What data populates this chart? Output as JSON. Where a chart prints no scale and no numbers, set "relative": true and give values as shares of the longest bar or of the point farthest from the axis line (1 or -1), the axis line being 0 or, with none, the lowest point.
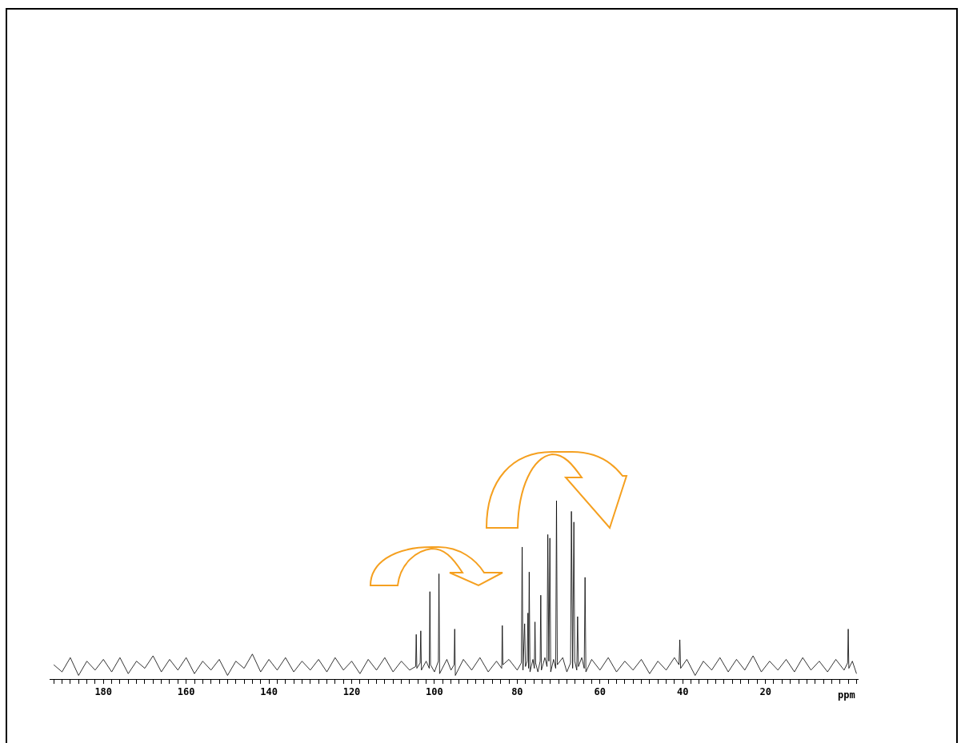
{
  "chart_data": {
    "type": "line",
    "relative": true,
    "xlabel": "ppm",
    "xlim": [
      193,
      -2.5
    ],
    "xticks": [
      {
        "value": 192,
        "label": null
      },
      {
        "value": 190,
        "label": null
      },
      {
        "value": 188,
        "label": null
      },
      {
        "value": 186,
        "label": null
      },
      {
        "value": 184,
        "label": null
      },
      {
        "value": 182,
        "label": null
      },
      180,
      {
        "value": 178,
        "label": null
      },
      {
        "value": 176,
        "label": null
      },
      {
        "value": 174,
        "label": null
      },
      {
        "value": 172,
        "label": null
      },
      {
        "value": 170,
        "label": null
      },
      {
        "value": 168,
        "label": null
      },
      {
        "value": 166,
        "label": null
      },
      {
        "value": 164,
        "label": null
      },
      {
        "value": 162,
        "label": null
      },
      160,
      {
        "value": 158,
        "label": null
      },
      {
        "value": 156,
        "label": null
      },
      {
        "value": 154,
        "label": null
      },
      {
        "value": 152,
        "label": null
      },
      {
        "value": 150,
        "label": null
      },
      {
        "value": 148,
        "label": null
      },
      {
        "value": 146,
        "label": null
      },
      {
        "value": 144,
        "label": null
      },
      {
        "value": 142,
        "label": null
      },
      140,
      {
        "value": 138,
        "label": null
      },
      {
        "value": 136,
        "label": null
      },
      {
        "value": 134,
        "label": null
      },
      {
        "value": 132,
        "label": null
      },
      {
        "value": 130,
        "label": null
      },
      {
        "value": 128,
        "label": null
      },
      {
        "value": 126,
        "label": null
      },
      {
        "value": 124,
        "label": null
      },
      {
        "value": 122,
        "label": null
      },
      120,
      {
        "value": 118,
        "label": null
      },
      {
        "value": 116,
        "label": null
      },
      {
        "value": 114,
        "label": null
      },
      {
        "value": 112,
        "label": null
      },
      {
        "value": 110,
        "label": null
      },
      {
        "value": 108,
        "label": null
      },
      {
        "value": 106,
        "label": null
      },
      {
        "value": 104,
        "label": null
      },
      {
        "value": 102,
        "label": null
      },
      100,
      {
        "value": 98,
        "label": null
      },
      {
        "value": 96,
        "label": null
      },
      {
        "value": 94,
        "label": null
      },
      {
        "value": 92,
        "label": null
      },
      {
        "value": 90,
        "label": null
      },
      {
        "value": 88,
        "label": null
      },
      {
        "value": 86,
        "label": null
      },
      {
        "value": 84,
        "label": null
      },
      {
        "value": 82,
        "label": null
      },
      80,
      {
        "value": 78,
        "label": null
      },
      {
        "value": 76,
        "label": null
      },
      {
        "value": 74,
        "label": null
      },
      {
        "value": 72,
        "label": null
      },
      {
        "value": 70,
        "label": null
      },
      {
        "value": 68,
        "label": null
      },
      {
        "value": 66,
        "label": null
      },
      {
        "value": 64,
        "label": null
      },
      {
        "value": 62,
        "label": null
      },
      60,
      {
        "value": 58,
        "label": null
      },
      {
        "value": 56,
        "label": null
      },
      {
        "value": 54,
        "label": null
      },
      {
        "value": 52,
        "label": null
      },
      {
        "value": 50,
        "label": null
      },
      {
        "value": 48,
        "label": null
      },
      {
        "value": 46,
        "label": null
      },
      {
        "value": 44,
        "label": null
      },
      {
        "value": 42,
        "label": null
      },
      40,
      {
        "value": 38,
        "label": null
      },
      {
        "value": 36,
        "label": null
      },
      {
        "value": 34,
        "label": null
      },
      {
        "value": 32,
        "label": null
      },
      {
        "value": 30,
        "label": null
      },
      {
        "value": 28,
        "label": null
      },
      {
        "value": 26,
        "label": null
      },
      {
        "value": 24,
        "label": null
      },
      {
        "value": 22,
        "label": null
      },
      20,
      {
        "value": 18,
        "label": null
      },
      {
        "value": 16,
        "label": null
      },
      {
        "value": 14,
        "label": null
      },
      {
        "value": 12,
        "label": null
      },
      {
        "value": 10,
        "label": null
      },
      {
        "value": 8,
        "label": null
      },
      {
        "value": 6,
        "label": null
      },
      {
        "value": 4,
        "label": null
      },
      {
        "value": 2,
        "label": null
      },
      {
        "value": 0,
        "label": null
      },
      {
        "value": -2,
        "label": null
      }
    ],
    "grid": false,
    "tick_labels": "x",
    "marker": "none",
    "line_style": "solid",
    "series": [
      {
        "color": "#000000",
        "x": [
          192,
          190,
          188,
          186,
          184,
          182,
          180,
          178,
          176,
          174,
          172,
          170,
          168,
          166,
          164,
          162,
          160,
          158,
          156,
          154,
          152,
          150,
          148,
          146,
          144,
          142,
          140,
          138,
          136,
          134,
          132,
          130,
          128,
          126,
          124,
          122,
          120,
          118,
          116,
          114,
          112,
          110,
          108,
          106,
          104.55,
          104.4,
          104.25,
          103.45,
          103.3,
          103.15,
          102,
          101.25,
          101.1,
          100.95,
          100,
          99.05,
          98.9,
          98.75,
          97,
          96,
          95.25,
          95.1,
          94.95,
          93,
          91,
          89,
          87,
          85,
          83.75,
          83.6,
          83.45,
          82,
          80,
          79.0,
          78.8,
          78.6,
          78.2,
          78.0,
          77.6,
          77.4,
          77.25,
          77.1,
          76.9,
          76.2,
          75.85,
          75.7,
          75.55,
          75,
          74.45,
          74.3,
          74.15,
          73.3,
          72.8,
          72.6,
          72.35,
          72.1,
          71.9,
          71.2,
          70.7,
          70.5,
          70.3,
          69,
          68,
          67.1,
          66.9,
          66.6,
          66.3,
          66.1,
          65.6,
          65.4,
          65.2,
          64.4,
          63.8,
          63.6,
          63.4,
          62,
          60,
          58,
          56,
          54,
          52,
          50,
          48,
          46,
          44,
          42,
          40.9,
          40.7,
          40.5,
          39,
          37,
          35,
          33,
          31,
          29,
          27,
          25,
          23,
          21,
          19,
          17,
          15,
          13,
          11,
          9,
          7,
          5,
          3,
          1,
          0.15,
          0,
          -0.15,
          -1,
          -2
        ],
        "values": [
          0.08,
          0.04,
          0.12,
          0.02,
          0.1,
          0.05,
          0.11,
          0.04,
          0.12,
          0.03,
          0.1,
          0.06,
          0.13,
          0.04,
          0.11,
          0.05,
          0.12,
          0.03,
          0.1,
          0.05,
          0.11,
          0.02,
          0.1,
          0.06,
          0.14,
          0.04,
          0.11,
          0.05,
          0.12,
          0.04,
          0.1,
          0.05,
          0.11,
          0.04,
          0.12,
          0.05,
          0.1,
          0.03,
          0.11,
          0.05,
          0.12,
          0.04,
          0.1,
          0.05,
          0.07,
          0.25,
          0.06,
          0.09,
          0.27,
          0.05,
          0.1,
          0.06,
          0.49,
          0.08,
          0.04,
          0.1,
          0.59,
          0.03,
          0.11,
          0.05,
          0.08,
          0.28,
          0.02,
          0.11,
          0.05,
          0.12,
          0.04,
          0.1,
          0.06,
          0.3,
          0.08,
          0.11,
          0.05,
          0.09,
          0.74,
          0.05,
          0.31,
          0.07,
          0.1,
          0.37,
          0.06,
          0.6,
          0.04,
          0.11,
          0.06,
          0.32,
          0.09,
          0.04,
          0.1,
          0.47,
          0.05,
          0.12,
          0.07,
          0.81,
          0.1,
          0.79,
          0.04,
          0.11,
          0.06,
          1,
          0.08,
          0.12,
          0.04,
          0.09,
          0.94,
          0.06,
          0.88,
          0.1,
          0.05,
          0.35,
          0.07,
          0.12,
          0.06,
          0.57,
          0.04,
          0.11,
          0.05,
          0.12,
          0.04,
          0.1,
          0.05,
          0.11,
          0.03,
          0.1,
          0.05,
          0.12,
          0.08,
          0.22,
          0.06,
          0.11,
          0.02,
          0.1,
          0.05,
          0.12,
          0.04,
          0.11,
          0.05,
          0.13,
          0.04,
          0.1,
          0.05,
          0.11,
          0.04,
          0.12,
          0.05,
          0.1,
          0.04,
          0.11,
          0.05,
          0.09,
          0.28,
          0.06,
          0.1,
          0.03
        ]
      }
    ]
  }
}
